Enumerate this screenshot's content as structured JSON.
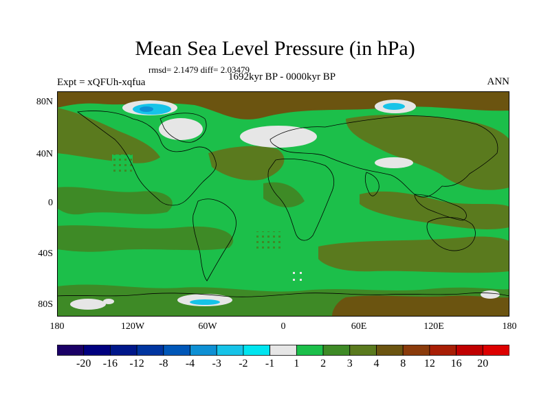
{
  "figure": {
    "title": "Mean Sea Level Pressure (in hPa)",
    "stats": "rmsd= 2.1479  diff= 2.03479",
    "experiment": "Expt = xQFUh-xqfua",
    "period": "1692kyr BP - 0000kyr BP",
    "season": "ANN"
  },
  "axes": {
    "y_ticks": [
      "80N",
      "40N",
      "0",
      "40S",
      "80S"
    ],
    "x_ticks": [
      "180",
      "120W",
      "60W",
      "0",
      "60E",
      "120E",
      "180"
    ]
  },
  "colorbar": {
    "labels": [
      "-20",
      "-16",
      "-12",
      "-8",
      "-4",
      "-3",
      "-2",
      "-1",
      "1",
      "2",
      "3",
      "4",
      "8",
      "12",
      "16",
      "20"
    ],
    "colors": [
      "#1a0066",
      "#00007f",
      "#00178a",
      "#0035a0",
      "#0057b8",
      "#0e90d4",
      "#16c3e8",
      "#00e5f0",
      "#e6e6e6",
      "#1cbf4a",
      "#3e8a26",
      "#5a7a1e",
      "#6b5410",
      "#8a3b0b",
      "#a81e05",
      "#c00000",
      "#dd0000"
    ]
  },
  "field_colors": {
    "near_zero": "#e6e6e6",
    "one_to_two": "#1cbf4a",
    "two_to_three": "#3e8a26",
    "three_to_four": "#5a7a1e",
    "four_to_eight": "#6b5410",
    "minus_two": "#16c3e8",
    "minus_three": "#0e90d4",
    "coast": "#000000"
  }
}
